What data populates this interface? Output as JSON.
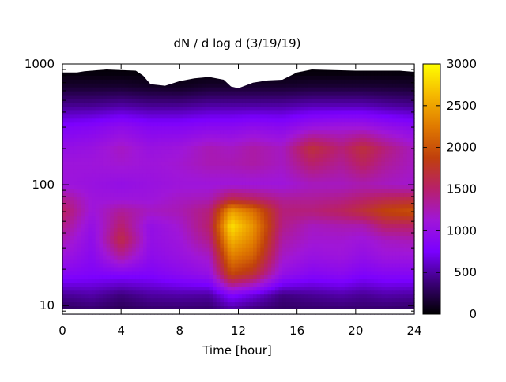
{
  "chart_data": {
    "type": "heatmap",
    "title": "dN / d log d (3/19/19)",
    "xlabel": "Time [hour]",
    "ylabel": "",
    "xlim": [
      0,
      24
    ],
    "ylim": [
      8.5,
      1000
    ],
    "yscale": "log",
    "x_ticks": [
      "0",
      "4",
      "8",
      "12",
      "16",
      "20",
      "24"
    ],
    "x_tick_values": [
      0,
      4,
      8,
      12,
      16,
      20,
      24
    ],
    "y_ticks": [
      "10",
      "100",
      "1000"
    ],
    "y_tick_values": [
      10,
      100,
      1000
    ],
    "colorbar": {
      "range": [
        0,
        3000
      ],
      "ticks": [
        "0",
        "500",
        "1000",
        "1500",
        "2000",
        "2500",
        "3000"
      ],
      "tick_values": [
        0,
        500,
        1000,
        1500,
        2000,
        2500,
        3000
      ],
      "palette": [
        "#000000",
        "#3b0077",
        "#7a00ff",
        "#a016d8",
        "#b8206a",
        "#c0400c",
        "#e07a00",
        "#f5b800",
        "#ffff00"
      ]
    },
    "grid": false,
    "legend": "none",
    "no_data_color": "#ffffff",
    "x_hours": [
      0,
      2,
      4,
      6,
      8,
      10,
      11.5,
      13,
      15,
      17,
      19,
      20.5,
      22,
      24
    ],
    "y_diameters": [
      9,
      12,
      18,
      26,
      35,
      45,
      60,
      75,
      100,
      150,
      200,
      300,
      450,
      650,
      850
    ],
    "z_values": [
      [
        280,
        330,
        260,
        320,
        330,
        320,
        450,
        360,
        300,
        320,
        330,
        330,
        320,
        300
      ],
      [
        450,
        500,
        380,
        480,
        500,
        480,
        800,
        650,
        400,
        450,
        500,
        450,
        500,
        480
      ],
      [
        850,
        800,
        800,
        800,
        900,
        1000,
        1900,
        1700,
        1000,
        850,
        900,
        800,
        850,
        850
      ],
      [
        1100,
        900,
        1350,
        950,
        1050,
        1200,
        2300,
        2100,
        1200,
        1050,
        1100,
        1000,
        1100,
        1100
      ],
      [
        1250,
        950,
        1650,
        1000,
        1100,
        1400,
        2600,
        2300,
        1300,
        1150,
        1150,
        1100,
        1200,
        1250
      ],
      [
        1400,
        1000,
        1500,
        1000,
        1150,
        1500,
        2850,
        2400,
        1400,
        1200,
        1250,
        1250,
        1500,
        1500
      ],
      [
        1550,
        1100,
        1350,
        1200,
        1250,
        1450,
        2500,
        2200,
        1450,
        1450,
        1550,
        1700,
        1900,
        2000
      ],
      [
        1400,
        1100,
        1100,
        1100,
        1200,
        1250,
        1650,
        1550,
        1350,
        1350,
        1400,
        1500,
        1600,
        1650
      ],
      [
        1100,
        1050,
        1000,
        1050,
        1100,
        1100,
        1100,
        1100,
        1100,
        1200,
        1200,
        1250,
        1200,
        1150
      ],
      [
        1100,
        1100,
        1150,
        1100,
        1150,
        1250,
        1250,
        1300,
        1200,
        1500,
        1350,
        1550,
        1350,
        1200
      ],
      [
        1000,
        1050,
        1200,
        1050,
        1100,
        1250,
        1200,
        1300,
        1200,
        1700,
        1450,
        1700,
        1450,
        1200
      ],
      [
        800,
        850,
        950,
        850,
        850,
        900,
        900,
        950,
        900,
        1050,
        1100,
        1100,
        1000,
        900
      ],
      [
        450,
        450,
        500,
        450,
        450,
        500,
        500,
        500,
        500,
        550,
        550,
        550,
        500,
        450
      ],
      [
        150,
        150,
        150,
        120,
        100,
        150,
        150,
        150,
        150,
        170,
        170,
        170,
        160,
        150
      ],
      [
        30,
        30,
        30,
        20,
        20,
        20,
        20,
        20,
        20,
        30,
        30,
        30,
        30,
        30
      ]
    ]
  }
}
